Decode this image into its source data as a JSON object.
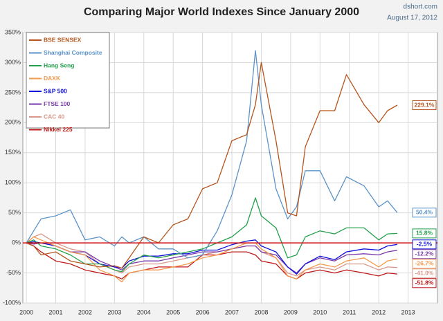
{
  "chart_data": {
    "type": "line",
    "title": "Comparing Major World Indexes Since January 2000",
    "source": "dshort.com",
    "date": "August 17, 2012",
    "x": [
      2000,
      2000.25,
      2000.5,
      2001,
      2001.5,
      2002,
      2002.5,
      2003,
      2003.25,
      2003.5,
      2004,
      2004.5,
      2005,
      2005.5,
      2006,
      2006.5,
      2007,
      2007.5,
      2007.8,
      2008,
      2008.5,
      2008.9,
      2009.2,
      2009.5,
      2010,
      2010.5,
      2010.9,
      2011.5,
      2012,
      2012.3,
      2012.63
    ],
    "xlim": [
      1999.88,
      2014
    ],
    "xticks": [
      2000,
      2001,
      2002,
      2003,
      2004,
      2005,
      2006,
      2007,
      2008,
      2009,
      2010,
      2011,
      2012,
      2013
    ],
    "ylim": [
      -100,
      350
    ],
    "yticks": [
      {
        "value": -100,
        "label": "-100%"
      },
      {
        "value": -50,
        "label": "-50%"
      },
      {
        "value": 0,
        "label": "0%"
      },
      {
        "value": 50,
        "label": "50%"
      },
      {
        "value": 100,
        "label": "100%"
      },
      {
        "value": 150,
        "label": "150%"
      },
      {
        "value": 200,
        "label": "200%"
      },
      {
        "value": 250,
        "label": "250%"
      },
      {
        "value": 300,
        "label": "300%"
      },
      {
        "value": 350,
        "label": "350%"
      }
    ],
    "grid": true,
    "legend": "upper left",
    "series": [
      {
        "name": "BSE SENSEX",
        "color": "#b5541c",
        "values": [
          0,
          -5,
          -20,
          -15,
          -30,
          -35,
          -40,
          -38,
          -42,
          -25,
          10,
          0,
          30,
          40,
          90,
          100,
          170,
          180,
          230,
          300,
          170,
          50,
          45,
          160,
          220,
          220,
          280,
          230,
          200,
          220,
          229.1
        ],
        "value_labels": [
          null,
          null,
          null,
          null,
          null,
          null,
          null,
          null,
          null,
          null,
          null,
          null,
          null,
          null,
          null,
          null,
          null,
          null,
          null,
          null,
          null,
          null,
          null,
          null,
          null,
          null,
          null,
          null,
          null,
          null,
          "229.1%"
        ]
      },
      {
        "name": "Shanghai Composite",
        "color": "#5b93c8",
        "values": [
          0,
          20,
          40,
          45,
          55,
          5,
          10,
          -5,
          10,
          0,
          10,
          -10,
          -10,
          -25,
          -20,
          20,
          80,
          170,
          320,
          230,
          90,
          40,
          60,
          120,
          120,
          70,
          110,
          95,
          60,
          70,
          50.4
        ],
        "value_labels": [
          null,
          null,
          null,
          null,
          null,
          null,
          null,
          null,
          null,
          null,
          null,
          null,
          null,
          null,
          null,
          null,
          null,
          null,
          null,
          null,
          null,
          null,
          null,
          null,
          null,
          null,
          null,
          null,
          null,
          null,
          "50.4%"
        ]
      },
      {
        "name": "Hang Seng",
        "color": "#22a04a",
        "values": [
          0,
          5,
          -5,
          -10,
          -20,
          -35,
          -35,
          -45,
          -48,
          -35,
          -20,
          -25,
          -20,
          -15,
          -10,
          0,
          10,
          30,
          75,
          45,
          25,
          -25,
          -20,
          10,
          20,
          15,
          25,
          25,
          5,
          15,
          15.8
        ],
        "value_labels": [
          null,
          null,
          null,
          null,
          null,
          null,
          null,
          null,
          null,
          null,
          null,
          null,
          null,
          null,
          null,
          null,
          null,
          null,
          null,
          null,
          null,
          null,
          null,
          null,
          null,
          null,
          null,
          null,
          null,
          null,
          "15.8%"
        ]
      },
      {
        "name": "DAXK",
        "color": "#f59a4a",
        "values": [
          0,
          10,
          5,
          -5,
          -15,
          -20,
          -45,
          -55,
          -65,
          -50,
          -45,
          -45,
          -40,
          -35,
          -25,
          -20,
          -10,
          0,
          0,
          -10,
          -25,
          -55,
          -60,
          -45,
          -35,
          -40,
          -30,
          -25,
          -40,
          -30,
          -26.7
        ],
        "value_labels": [
          null,
          null,
          null,
          null,
          null,
          null,
          null,
          null,
          null,
          null,
          null,
          null,
          null,
          null,
          null,
          null,
          null,
          null,
          null,
          null,
          null,
          null,
          null,
          null,
          null,
          null,
          null,
          null,
          null,
          null,
          "-26.7%"
        ]
      },
      {
        "name": "S&P 500",
        "color": "#1010d8",
        "values": [
          0,
          2,
          0,
          -5,
          -15,
          -20,
          -35,
          -40,
          -42,
          -30,
          -22,
          -22,
          -18,
          -18,
          -12,
          -12,
          -3,
          3,
          5,
          -5,
          -15,
          -40,
          -52,
          -35,
          -22,
          -28,
          -15,
          -10,
          -12,
          -5,
          -2.5
        ],
        "value_labels": [
          null,
          null,
          null,
          null,
          null,
          null,
          null,
          null,
          null,
          null,
          null,
          null,
          null,
          null,
          null,
          null,
          null,
          null,
          null,
          null,
          null,
          null,
          null,
          null,
          null,
          null,
          null,
          null,
          null,
          null,
          "-2.5%"
        ]
      },
      {
        "name": "FTSE 100",
        "color": "#7a3aa8",
        "values": [
          0,
          -2,
          0,
          -5,
          -15,
          -15,
          -30,
          -40,
          -45,
          -35,
          -30,
          -30,
          -25,
          -20,
          -15,
          -15,
          -10,
          -5,
          -5,
          -15,
          -20,
          -40,
          -50,
          -35,
          -25,
          -30,
          -20,
          -18,
          -20,
          -15,
          -12.2
        ],
        "value_labels": [
          null,
          null,
          null,
          null,
          null,
          null,
          null,
          null,
          null,
          null,
          null,
          null,
          null,
          null,
          null,
          null,
          null,
          null,
          null,
          null,
          null,
          null,
          null,
          null,
          null,
          null,
          null,
          null,
          null,
          null,
          "-12.2%"
        ]
      },
      {
        "name": "CAC 40",
        "color": "#d9968a",
        "values": [
          0,
          10,
          15,
          0,
          -10,
          -15,
          -35,
          -45,
          -50,
          -40,
          -35,
          -35,
          -30,
          -25,
          -20,
          -15,
          -10,
          -5,
          -5,
          -15,
          -25,
          -50,
          -55,
          -45,
          -40,
          -45,
          -35,
          -35,
          -45,
          -40,
          -41.0
        ],
        "value_labels": [
          null,
          null,
          null,
          null,
          null,
          null,
          null,
          null,
          null,
          null,
          null,
          null,
          null,
          null,
          null,
          null,
          null,
          null,
          null,
          null,
          null,
          null,
          null,
          null,
          null,
          null,
          null,
          null,
          null,
          null,
          "-41.0%"
        ]
      },
      {
        "name": "Nikkei 225",
        "color": "#c01818",
        "values": [
          0,
          -5,
          -15,
          -30,
          -35,
          -45,
          -50,
          -55,
          -60,
          -50,
          -45,
          -40,
          -40,
          -40,
          -20,
          -20,
          -15,
          -15,
          -20,
          -30,
          -35,
          -55,
          -60,
          -50,
          -45,
          -50,
          -45,
          -50,
          -55,
          -50,
          -51.8
        ],
        "value_labels": [
          null,
          null,
          null,
          null,
          null,
          null,
          null,
          null,
          null,
          null,
          null,
          null,
          null,
          null,
          null,
          null,
          null,
          null,
          null,
          null,
          null,
          null,
          null,
          null,
          null,
          null,
          null,
          null,
          null,
          null,
          "-51.8%"
        ]
      }
    ]
  }
}
